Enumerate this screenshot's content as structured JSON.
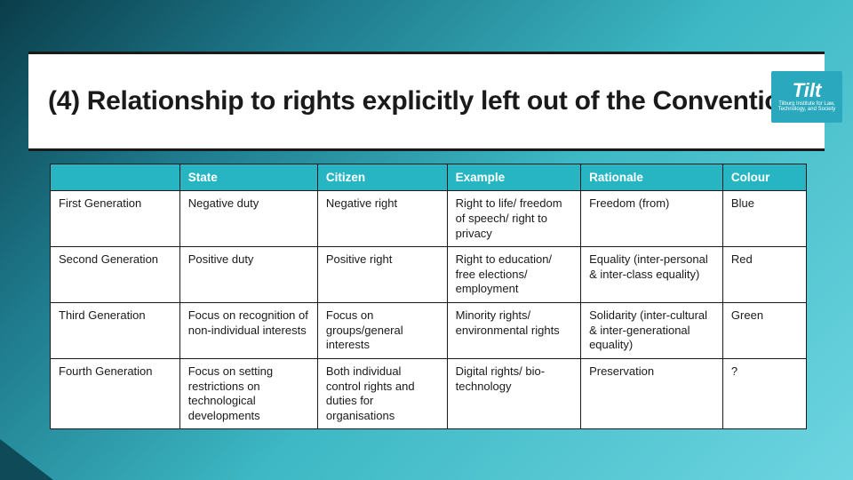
{
  "title": "(4) Relationship to rights explicitly left out of the Convention",
  "logo": {
    "mark": "Tilt",
    "sub": "Tilburg Institute for Law, Technology, and Society"
  },
  "table": {
    "header_bg": "#27b5c4",
    "header_fg": "#ffffff",
    "border_color": "#1a1a1a",
    "columns": [
      "",
      "State",
      "Citizen",
      "Example",
      "Rationale",
      "Colour"
    ],
    "rows": [
      {
        "label": "First Generation",
        "state": "Negative duty",
        "citizen": "Negative right",
        "example": "Right to life/ freedom of speech/ right to privacy",
        "rationale": "Freedom (from)",
        "colour": "Blue"
      },
      {
        "label": "Second Generation",
        "state": "Positive duty",
        "citizen": "Positive right",
        "example": "Right to education/ free elections/ employment",
        "rationale": "Equality (inter-personal & inter-class equality)",
        "colour": "Red"
      },
      {
        "label": "Third Generation",
        "state": "Focus on recognition of non-individual interests",
        "citizen": "Focus on groups/general interests",
        "example": "Minority rights/ environmental rights",
        "rationale": "Solidarity (inter-cultural & inter-generational equality)",
        "colour": "Green"
      },
      {
        "label": "Fourth Generation",
        "state": "Focus on setting restrictions on technological developments",
        "citizen": "Both individual control rights and duties for organisations",
        "example": "Digital rights/ bio-technology",
        "rationale": "Preservation",
        "colour": "?"
      }
    ]
  },
  "bg_gradient": [
    "#0a3d4a",
    "#1e7a8c",
    "#3db8c4",
    "#6dd5e0"
  ]
}
